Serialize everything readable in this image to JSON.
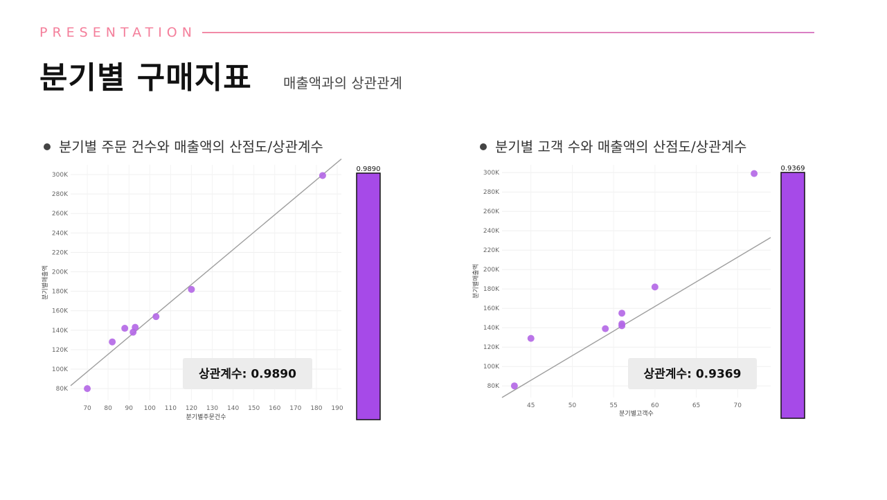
{
  "header": {
    "kicker": "PRESENTATION",
    "title": "분기별 구매지표",
    "subtitle": "매출액과의 상관관계"
  },
  "sections": [
    {
      "label": "분기별 주문 건수와 매출액의 산점도/상관계수"
    },
    {
      "label": "분기별 고객 수와 매출액의 산점도/상관계수"
    }
  ],
  "chart_data": [
    {
      "type": "scatter",
      "title": "",
      "xlabel": "분기별주문건수",
      "ylabel": "분기별매출액",
      "xlim": [
        62,
        192
      ],
      "ylim": [
        68000,
        310000
      ],
      "x_ticks": [
        70,
        80,
        90,
        100,
        110,
        120,
        130,
        140,
        150,
        160,
        170,
        180,
        190
      ],
      "y_ticks": [
        80000,
        100000,
        120000,
        140000,
        160000,
        180000,
        200000,
        220000,
        240000,
        260000,
        280000,
        300000
      ],
      "y_tick_labels": [
        "80K",
        "100K",
        "120K",
        "140K",
        "160K",
        "180K",
        "200K",
        "220K",
        "240K",
        "260K",
        "280K",
        "300K"
      ],
      "points": [
        {
          "x": 70,
          "y": 80000
        },
        {
          "x": 82,
          "y": 128000
        },
        {
          "x": 88,
          "y": 142000
        },
        {
          "x": 92,
          "y": 138000
        },
        {
          "x": 93,
          "y": 143000
        },
        {
          "x": 103,
          "y": 154000
        },
        {
          "x": 120,
          "y": 182000
        },
        {
          "x": 183,
          "y": 299000
        }
      ],
      "trendline": {
        "x": [
          62,
          192
        ],
        "y": [
          83000,
          316000
        ]
      },
      "correlation_label": "상관계수: 0.9890",
      "correlation_bar": {
        "label": "0.9890",
        "value": 0.989
      },
      "point_color": "#b266e6",
      "bar_color": "#a64ae8",
      "grid": true
    },
    {
      "type": "scatter",
      "title": "",
      "xlabel": "분기별고객수",
      "ylabel": "분기별매출액",
      "xlim": [
        41.5,
        74
      ],
      "ylim": [
        68000,
        308000
      ],
      "x_ticks": [
        45,
        50,
        55,
        60,
        65,
        70
      ],
      "y_ticks": [
        80000,
        100000,
        120000,
        140000,
        160000,
        180000,
        200000,
        220000,
        240000,
        260000,
        280000,
        300000
      ],
      "y_tick_labels": [
        "80K",
        "100K",
        "120K",
        "140K",
        "160K",
        "180K",
        "200K",
        "220K",
        "240K",
        "260K",
        "280K",
        "300K"
      ],
      "points": [
        {
          "x": 43,
          "y": 80000
        },
        {
          "x": 45,
          "y": 129000
        },
        {
          "x": 54,
          "y": 139000
        },
        {
          "x": 56,
          "y": 155000
        },
        {
          "x": 56,
          "y": 144000
        },
        {
          "x": 56,
          "y": 142000
        },
        {
          "x": 60,
          "y": 182000
        },
        {
          "x": 72,
          "y": 299000
        }
      ],
      "trendline": {
        "x": [
          41.5,
          74
        ],
        "y": [
          68000,
          233000
        ]
      },
      "correlation_label": "상관계수: 0.9369",
      "correlation_bar": {
        "label": "0.9369",
        "value": 0.9369
      },
      "point_color": "#b266e6",
      "bar_color": "#a64ae8",
      "grid": true
    }
  ]
}
